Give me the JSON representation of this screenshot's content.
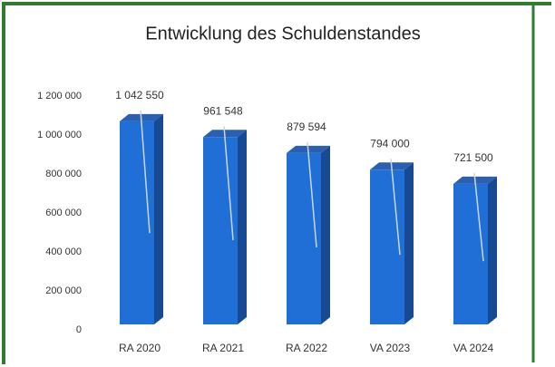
{
  "chart_data": {
    "type": "bar3d",
    "title": "Entwicklung des Schuldenstandes",
    "categories": [
      "RA 2020",
      "RA 2021",
      "RA 2022",
      "VA 2023",
      "VA 2024"
    ],
    "values": [
      1042550,
      961548,
      879594,
      794000,
      721500
    ],
    "value_labels": [
      "1 042 550",
      "961 548",
      "879 594",
      "794 000",
      "721 500"
    ],
    "color": "#1f6fd6",
    "ylim": [
      0,
      1200000
    ],
    "yticks": [
      0,
      {
        "value": 200000,
        "label": "200 000"
      },
      {
        "value": 400000,
        "label": "400 000"
      },
      {
        "value": 600000,
        "label": "600 000"
      },
      {
        "value": 800000,
        "label": "800 000"
      },
      {
        "value": 1000000,
        "label": "1 000 000"
      },
      {
        "value": 1200000,
        "label": "1 200 000"
      }
    ],
    "grid": false
  }
}
